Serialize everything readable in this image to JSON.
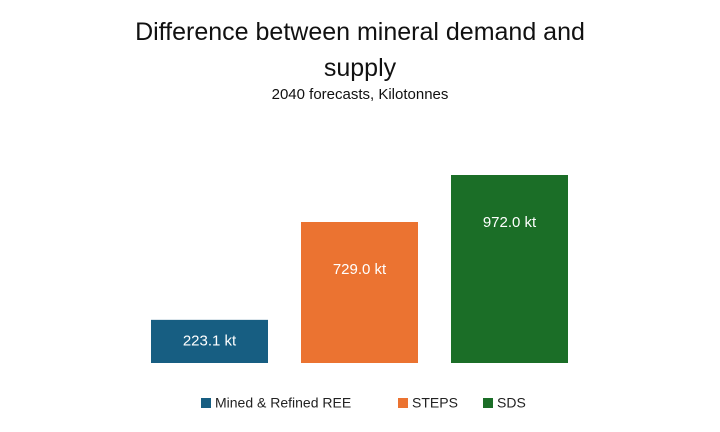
{
  "chart_data": {
    "type": "bar",
    "title": "Difference between mineral demand and supply",
    "subtitle": "2040 forecasts, Kilotonnes",
    "categories": [
      "Mined & Refined REE",
      "STEPS",
      "SDS"
    ],
    "values": [
      223.1,
      729.0,
      972.0
    ],
    "value_labels": [
      "223.1 kt",
      "729.0 kt",
      "972.0 kt"
    ],
    "colors": [
      "#175e82",
      "#eb7331",
      "#1b6e27"
    ],
    "legend": "bottom"
  }
}
